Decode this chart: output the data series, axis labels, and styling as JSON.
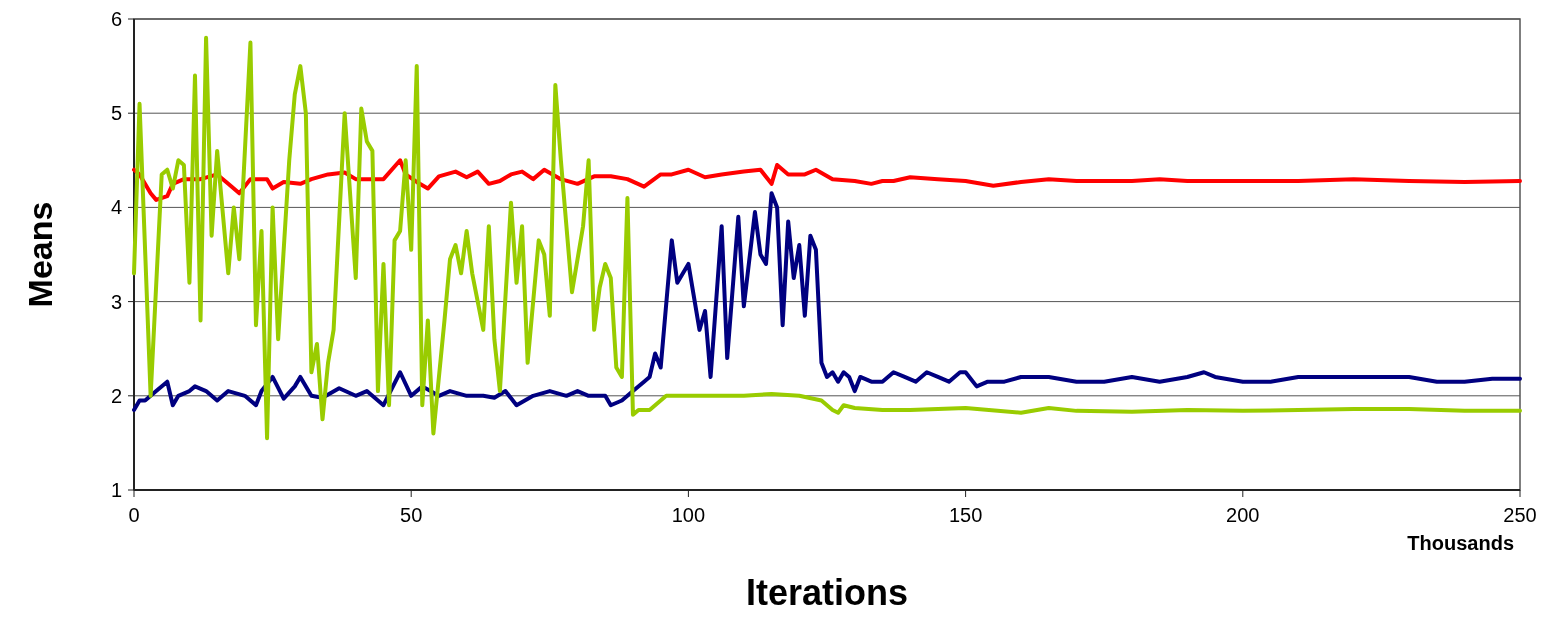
{
  "chart_data": {
    "type": "line",
    "xlabel": "Iterations",
    "ylabel": "Means",
    "annotations": [
      "Thousands"
    ],
    "xlim": [
      0,
      250
    ],
    "xticks": [
      0,
      50,
      100,
      150,
      200,
      250
    ],
    "ylim": [
      1,
      6
    ],
    "yticks": [
      1,
      2,
      3,
      4,
      5,
      6
    ],
    "grid": "y",
    "marker": "none",
    "line_style": "solid",
    "series": [
      {
        "color": "#ff0000",
        "x": [
          0,
          1,
          3,
          4,
          6,
          7,
          9,
          12,
          15,
          17,
          19,
          21,
          24,
          25,
          27,
          30,
          32,
          35,
          38,
          40,
          43,
          45,
          48,
          49,
          51,
          53,
          55,
          58,
          60,
          62,
          64,
          66,
          68,
          70,
          72,
          74,
          77,
          80,
          83,
          86,
          89,
          92,
          95,
          97,
          100,
          103,
          106,
          110,
          113,
          115,
          116,
          118,
          121,
          123,
          126,
          130,
          133,
          135,
          137,
          140,
          145,
          150,
          155,
          160,
          165,
          170,
          175,
          180,
          185,
          190,
          200,
          210,
          220,
          230,
          240,
          250
        ],
        "values": [
          4.4,
          4.35,
          4.15,
          4.08,
          4.12,
          4.25,
          4.3,
          4.3,
          4.35,
          4.25,
          4.15,
          4.3,
          4.3,
          4.2,
          4.27,
          4.25,
          4.3,
          4.35,
          4.37,
          4.3,
          4.3,
          4.3,
          4.5,
          4.35,
          4.27,
          4.2,
          4.33,
          4.38,
          4.32,
          4.38,
          4.25,
          4.28,
          4.35,
          4.38,
          4.3,
          4.4,
          4.3,
          4.25,
          4.33,
          4.33,
          4.3,
          4.22,
          4.35,
          4.35,
          4.4,
          4.32,
          4.35,
          4.38,
          4.4,
          4.25,
          4.45,
          4.35,
          4.35,
          4.4,
          4.3,
          4.28,
          4.25,
          4.28,
          4.28,
          4.32,
          4.3,
          4.28,
          4.23,
          4.27,
          4.3,
          4.28,
          4.28,
          4.28,
          4.3,
          4.28,
          4.28,
          4.28,
          4.3,
          4.28,
          4.27,
          4.28
        ]
      },
      {
        "color": "#000080",
        "x": [
          0,
          1,
          2,
          4,
          6,
          7,
          8,
          10,
          11,
          13,
          15,
          17,
          20,
          21,
          22,
          23,
          25,
          27,
          29,
          30,
          32,
          34,
          37,
          40,
          42,
          45,
          48,
          50,
          52,
          55,
          57,
          60,
          63,
          65,
          67,
          69,
          72,
          75,
          78,
          80,
          82,
          85,
          86,
          88,
          90,
          92,
          93,
          94,
          95,
          97,
          98,
          100,
          102,
          103,
          104,
          106,
          107,
          109,
          110,
          112,
          113,
          114,
          115,
          116,
          117,
          118,
          119,
          120,
          121,
          122,
          123,
          124,
          125,
          126,
          127,
          128,
          129,
          130,
          131,
          133,
          135,
          137,
          139,
          141,
          143,
          145,
          147,
          149,
          150,
          152,
          154,
          157,
          160,
          165,
          170,
          175,
          180,
          185,
          190,
          193,
          195,
          200,
          205,
          210,
          215,
          220,
          230,
          235,
          240,
          245,
          250
        ],
        "values": [
          1.85,
          1.95,
          1.95,
          2.05,
          2.15,
          1.9,
          2.0,
          2.05,
          2.1,
          2.05,
          1.95,
          2.05,
          2.0,
          1.95,
          1.9,
          2.05,
          2.2,
          1.97,
          2.1,
          2.2,
          2.0,
          1.98,
          2.08,
          2.0,
          2.05,
          1.9,
          2.25,
          2.0,
          2.1,
          2.0,
          2.05,
          2.0,
          2.0,
          1.98,
          2.05,
          1.9,
          2.0,
          2.05,
          2.0,
          2.05,
          2.0,
          2.0,
          1.9,
          1.95,
          2.05,
          2.15,
          2.2,
          2.45,
          2.3,
          3.65,
          3.2,
          3.4,
          2.7,
          2.9,
          2.2,
          3.8,
          2.4,
          3.9,
          2.95,
          3.95,
          3.5,
          3.4,
          4.15,
          4.0,
          2.75,
          3.85,
          3.25,
          3.6,
          2.85,
          3.7,
          3.55,
          2.35,
          2.2,
          2.25,
          2.15,
          2.25,
          2.2,
          2.05,
          2.2,
          2.15,
          2.15,
          2.25,
          2.2,
          2.15,
          2.25,
          2.2,
          2.15,
          2.25,
          2.25,
          2.1,
          2.15,
          2.15,
          2.2,
          2.2,
          2.15,
          2.15,
          2.2,
          2.15,
          2.2,
          2.25,
          2.2,
          2.15,
          2.15,
          2.2,
          2.2,
          2.2,
          2.2,
          2.15,
          2.15,
          2.18,
          2.18
        ]
      },
      {
        "color": "#99cc00",
        "x": [
          0,
          1,
          3,
          5,
          6,
          7,
          8,
          9,
          10,
          11,
          12,
          13,
          14,
          15,
          17,
          18,
          19,
          21,
          22,
          23,
          24,
          25,
          26,
          28,
          29,
          30,
          31,
          32,
          33,
          34,
          35,
          36,
          38,
          40,
          41,
          42,
          43,
          44,
          45,
          46,
          47,
          48,
          49,
          50,
          51,
          52,
          53,
          54,
          56,
          57,
          58,
          59,
          60,
          61,
          63,
          64,
          65,
          66,
          68,
          69,
          70,
          71,
          73,
          74,
          75,
          76,
          77,
          79,
          81,
          82,
          83,
          84,
          85,
          86,
          87,
          88,
          89,
          90,
          91,
          93,
          96,
          100,
          105,
          110,
          115,
          120,
          124,
          126,
          127,
          128,
          130,
          135,
          140,
          150,
          160,
          165,
          170,
          180,
          190,
          200,
          210,
          220,
          230,
          240,
          250
        ],
        "values": [
          3.3,
          5.1,
          2.0,
          4.35,
          4.4,
          4.2,
          4.5,
          4.45,
          3.2,
          5.4,
          2.8,
          5.8,
          3.7,
          4.6,
          3.3,
          4.0,
          3.45,
          5.75,
          2.75,
          3.75,
          1.55,
          4.0,
          2.6,
          4.5,
          5.2,
          5.5,
          5.0,
          2.25,
          2.55,
          1.75,
          2.35,
          2.7,
          5.0,
          3.25,
          5.05,
          4.7,
          4.6,
          2.05,
          3.4,
          1.9,
          3.65,
          3.75,
          4.5,
          3.55,
          5.5,
          1.9,
          2.8,
          1.6,
          2.8,
          3.45,
          3.6,
          3.3,
          3.75,
          3.3,
          2.7,
          3.8,
          2.6,
          2.05,
          4.05,
          3.2,
          3.8,
          2.35,
          3.65,
          3.5,
          2.85,
          5.3,
          4.5,
          3.1,
          3.8,
          4.5,
          2.7,
          3.15,
          3.4,
          3.25,
          2.3,
          2.2,
          4.1,
          1.8,
          1.85,
          1.85,
          2.0,
          2.0,
          2.0,
          2.0,
          2.02,
          2.0,
          1.95,
          1.85,
          1.82,
          1.9,
          1.87,
          1.85,
          1.85,
          1.87,
          1.82,
          1.87,
          1.84,
          1.83,
          1.85,
          1.84,
          1.85,
          1.86,
          1.86,
          1.84,
          1.84
        ]
      }
    ]
  }
}
